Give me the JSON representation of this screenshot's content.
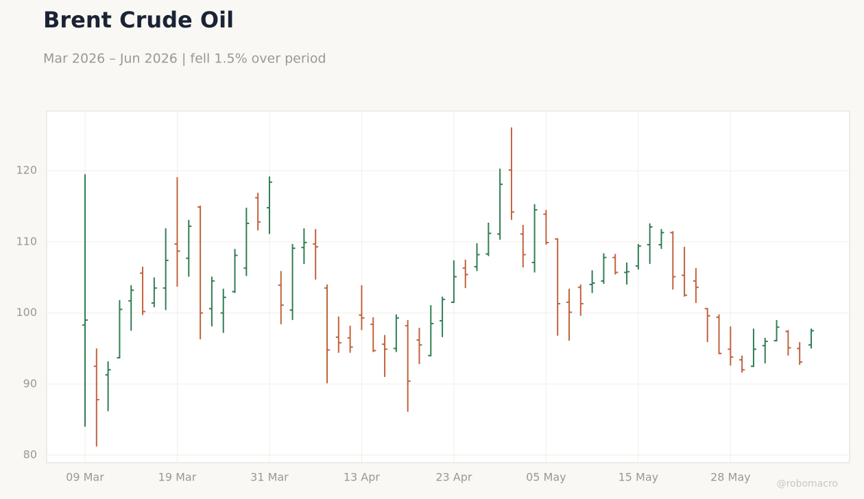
{
  "chart_data": {
    "type": "ohlc",
    "title": "Brent Crude Oil",
    "subtitle": "Mar 2026 – Jun 2026 | fell 1.5% over period",
    "watermark": "@robomacro",
    "categories": [
      "09 Mar",
      null,
      null,
      null,
      null,
      null,
      null,
      null,
      "19 Mar",
      null,
      null,
      null,
      null,
      null,
      null,
      null,
      "31 Mar",
      null,
      null,
      null,
      null,
      null,
      null,
      null,
      "13 Apr",
      null,
      null,
      null,
      null,
      null,
      null,
      null,
      "23 Apr",
      null,
      null,
      null,
      null,
      null,
      null,
      null,
      "05 May",
      null,
      null,
      null,
      null,
      null,
      null,
      null,
      "15 May",
      null,
      null,
      null,
      null,
      null,
      null,
      null,
      "28 May",
      null,
      null,
      null,
      null,
      null,
      null,
      null
    ],
    "open": [
      98.3,
      92.5,
      91.3,
      93.7,
      101.7,
      105.6,
      101.4,
      103.5,
      109.7,
      107.7,
      114.9,
      100.6,
      100,
      103,
      106.3,
      116.2,
      114.8,
      103.9,
      100.4,
      109.2,
      109.7,
      103.5,
      96.6,
      96.5,
      99.7,
      98.4,
      95.6,
      95,
      98.2,
      96.2,
      94,
      98.9,
      101.5,
      106.3,
      106.5,
      108.3,
      111.1,
      120.1,
      111.1,
      107.1,
      113.9,
      110.4,
      101.5,
      103.6,
      104,
      104.5,
      107.8,
      105.7,
      106.6,
      109.6,
      109.6,
      111.3,
      105.3,
      104.5,
      100.6,
      99.4,
      94.9,
      93.4,
      92.5,
      95.4,
      96.1,
      97.4,
      95,
      95.5
    ],
    "high": [
      119.5,
      95,
      93.2,
      101.8,
      103.9,
      106.5,
      105,
      111.9,
      119.1,
      113.1,
      115.1,
      105.1,
      103.4,
      109,
      114.8,
      116.9,
      119.2,
      105.9,
      109.7,
      111.9,
      111.8,
      104,
      99.5,
      98.2,
      103.9,
      99.4,
      96.9,
      99.8,
      99,
      97.9,
      101.1,
      102.3,
      107.4,
      107.5,
      109.8,
      112.7,
      120.3,
      126.1,
      112.4,
      115.3,
      114.5,
      110.5,
      103.4,
      104,
      106,
      108.4,
      108.3,
      107.1,
      109.7,
      112.6,
      111.8,
      111.5,
      109.3,
      106.3,
      100.7,
      99.8,
      98.1,
      94,
      97.8,
      96.5,
      99,
      97.6,
      95.9,
      97.8
    ],
    "low": [
      84,
      81.2,
      86.2,
      93.6,
      97.5,
      99.7,
      100.8,
      100.4,
      103.7,
      105.1,
      96.3,
      98.1,
      97.2,
      102.8,
      105.2,
      111.6,
      111.1,
      98.4,
      99,
      106.9,
      104.7,
      90.1,
      94.4,
      94.4,
      97.6,
      94.5,
      91,
      94.5,
      86.1,
      92.8,
      93.9,
      96.6,
      101.4,
      103.5,
      105.9,
      108,
      110.3,
      113.1,
      106.4,
      105.7,
      109.6,
      96.8,
      96.1,
      99.6,
      102.8,
      104.1,
      105.4,
      104,
      106.1,
      106.9,
      109,
      103.3,
      102.3,
      101.4,
      95.9,
      94.2,
      92.6,
      91.6,
      92.4,
      92.9,
      96,
      94,
      92.7,
      95
    ],
    "close": [
      99,
      87.8,
      92,
      100.5,
      103.2,
      100.2,
      103.5,
      107.4,
      108.7,
      112.2,
      100,
      104.5,
      102.2,
      108.1,
      112.6,
      112.8,
      118.4,
      101.1,
      109.1,
      109.9,
      109.3,
      94.8,
      95.8,
      95.2,
      99.3,
      94.7,
      94.9,
      99.3,
      90.4,
      95.5,
      98.5,
      101.9,
      105.1,
      105.4,
      108.2,
      111.2,
      118.1,
      114.2,
      108.2,
      114.5,
      109.9,
      101.3,
      100.1,
      101.3,
      104.2,
      107.8,
      105.7,
      105.8,
      109.4,
      112.1,
      111.3,
      105.1,
      102.5,
      103.6,
      99.6,
      94.3,
      93.8,
      92,
      94.9,
      96,
      98,
      95.1,
      93.1,
      97.5
    ],
    "up_color": "#2e7d52",
    "down_color": "#c0623c",
    "ylim": [
      78.94,
      128.4
    ],
    "yticks": [
      80,
      90,
      100,
      110,
      120
    ],
    "grid": true
  }
}
